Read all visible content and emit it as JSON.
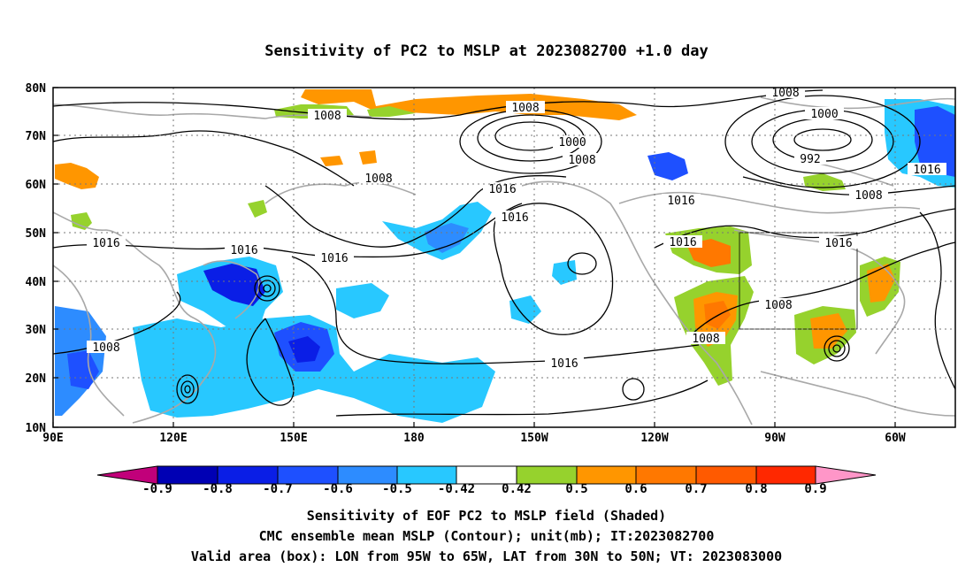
{
  "title": "Sensitivity of PC2 to MSLP at 2023082700 +1.0 day",
  "map": {
    "lat_labels": [
      "80N",
      "70N",
      "60N",
      "50N",
      "40N",
      "30N",
      "20N",
      "10N"
    ],
    "lon_labels": [
      "90E",
      "120E",
      "150E",
      "180",
      "150W",
      "120W",
      "90W",
      "60W"
    ],
    "valid_box": {
      "lon_west": -95,
      "lon_east": -65,
      "lat_south": 30,
      "lat_north": 50
    },
    "contour_labels": [
      "1008",
      "1000",
      "992",
      "1016",
      "1008",
      "1016",
      "1016",
      "1008",
      "1008",
      "1016",
      "1016",
      "1008",
      "1016",
      "1016",
      "1000",
      "1008",
      "1016",
      "1008",
      "1016",
      "1008",
      "1008",
      "1016"
    ],
    "shading_colors": {
      "neg_09": "#c1007a",
      "neg_08": "#0000b4",
      "neg_07": "#0a1ee6",
      "neg_06": "#1e50ff",
      "neg_05": "#2d8cff",
      "neg_042": "#28c8ff",
      "neutral": "#ffffff",
      "pos_042": "#96d22d",
      "pos_05": "#ff9600",
      "pos_06": "#ff7800",
      "pos_07": "#ff5a00",
      "pos_08": "#ff2800",
      "pos_09": "#ff96c8"
    }
  },
  "colorbar": {
    "labels": [
      "-0.9",
      "-0.8",
      "-0.7",
      "-0.6",
      "-0.5",
      "-0.42",
      "0.42",
      "0.5",
      "0.6",
      "0.7",
      "0.8",
      "0.9"
    ]
  },
  "captions": [
    "Sensitivity of EOF PC2 to MSLP field (Shaded)",
    "CMC ensemble mean MSLP (Contour); unit(mb); IT:2023082700",
    "Valid area (box): LON from 95W to 65W, LAT from 30N to 50N; VT: 2023083000"
  ]
}
